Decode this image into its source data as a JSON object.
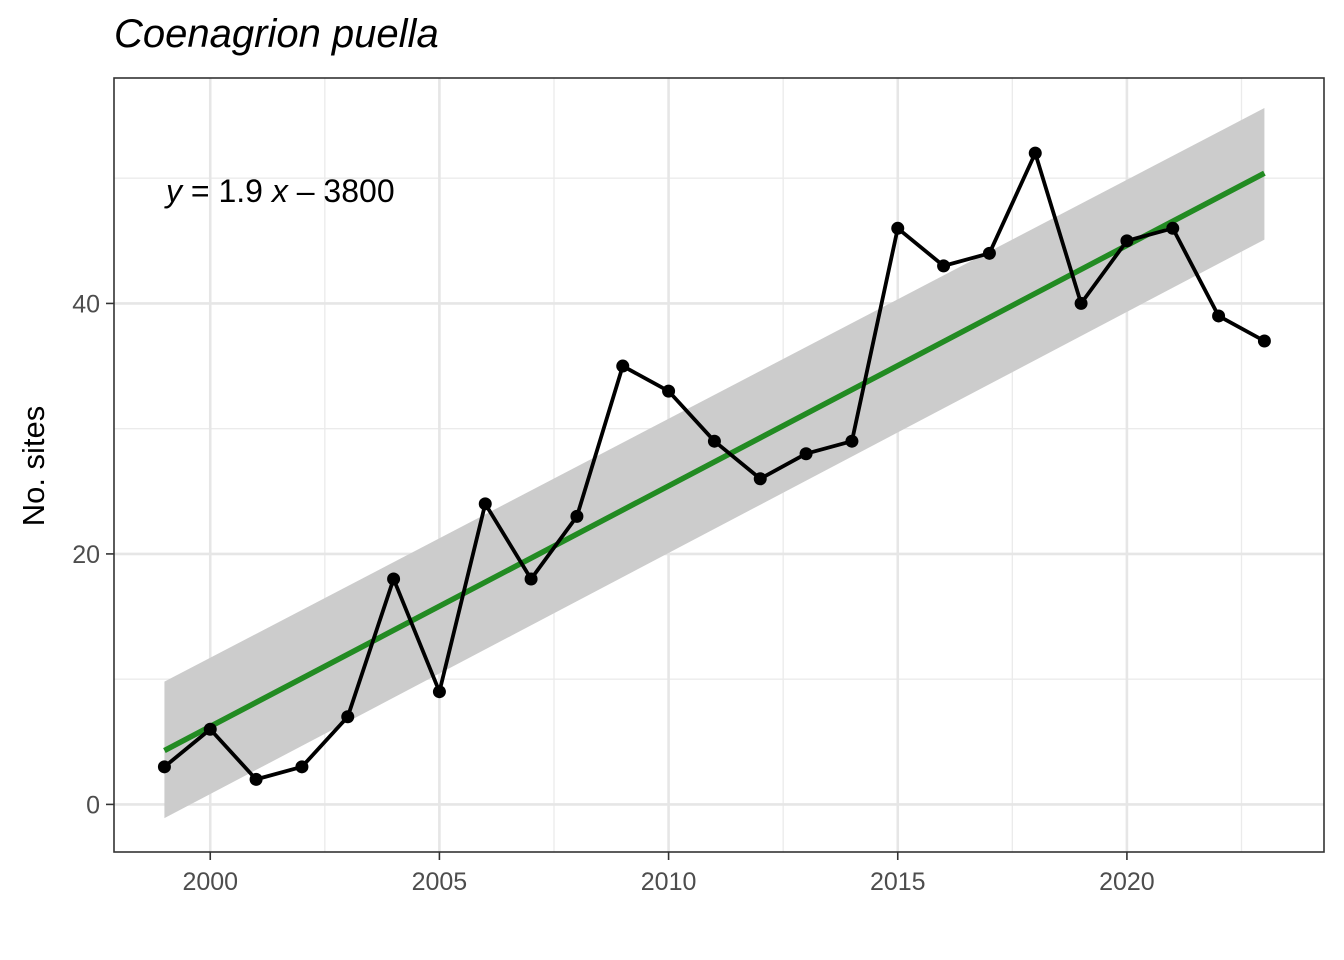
{
  "chart_data": {
    "type": "line",
    "title": "Coenagrion puella",
    "xlabel": "",
    "ylabel": "No. sites",
    "xlim": [
      1997.9,
      2024.3
    ],
    "ylim": [
      -3.8,
      58.0
    ],
    "x_ticks": [
      2000,
      2005,
      2010,
      2015,
      2020
    ],
    "y_ticks": [
      0,
      20,
      40
    ],
    "grid": true,
    "annotation": {
      "y": "y",
      "eq": " = 1.9 ",
      "x": "x",
      "rest": " – 3800"
    },
    "series": [
      {
        "x": [
          1999,
          2000,
          2001,
          2002,
          2003,
          2004,
          2005,
          2006,
          2007,
          2008,
          2009,
          2010,
          2011,
          2012,
          2013,
          2014,
          2015,
          2016,
          2017,
          2018,
          2019,
          2020,
          2021,
          2022,
          2023
        ],
        "values": [
          3,
          6,
          2,
          3,
          7,
          18,
          9,
          24,
          18,
          23,
          35,
          33,
          29,
          26,
          28,
          29,
          46,
          43,
          44,
          52,
          40,
          45,
          46,
          39,
          37
        ],
        "color": "#000000"
      }
    ],
    "fit": {
      "x": [
        1999,
        2023
      ],
      "values": [
        4.3,
        50.4
      ],
      "ci_lower": [
        -1.1,
        45.1
      ],
      "ci_upper": [
        9.8,
        55.6
      ],
      "line_color": "#228B22",
      "band_color": "#cccccc"
    }
  }
}
